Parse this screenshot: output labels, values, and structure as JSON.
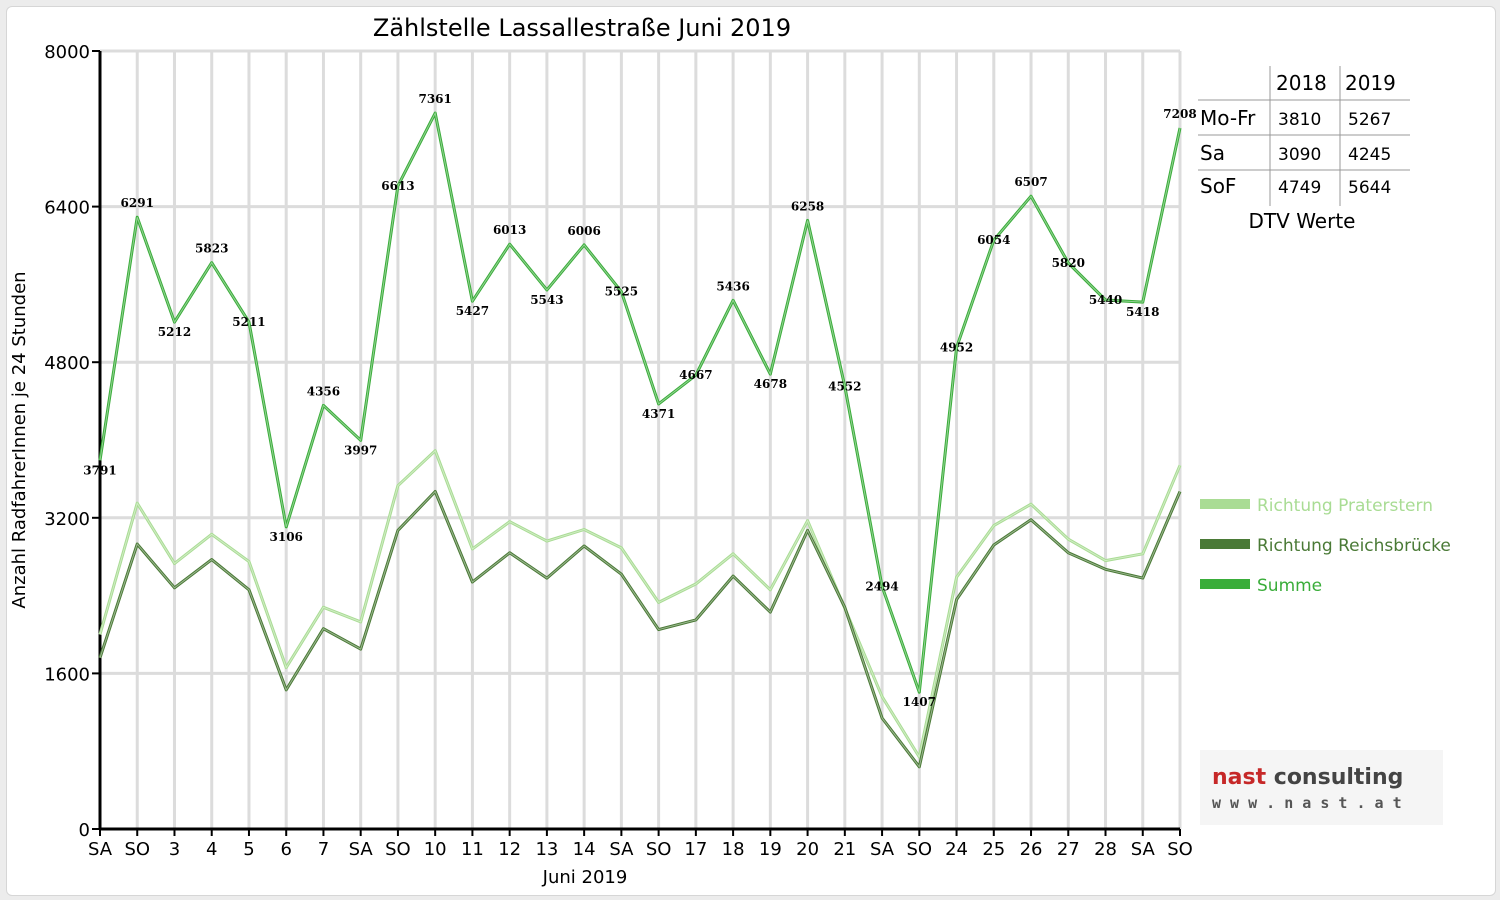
{
  "chart_data": {
    "type": "line",
    "title": "Zählstelle Lassallestraße Juni 2019",
    "xlabel": "Juni 2019",
    "ylabel": "Anzahl RadfahrerInnen je 24 Stunden",
    "ylim": [
      0,
      8000
    ],
    "yticks": [
      "0",
      "1600",
      "3200",
      "4800",
      "6400",
      "8000"
    ],
    "grid": true,
    "legend_position": "right",
    "categories": [
      "SA",
      "SO",
      "3",
      "4",
      "5",
      "6",
      "7",
      "SA",
      "SO",
      "10",
      "11",
      "12",
      "13",
      "14",
      "SA",
      "SO",
      "17",
      "18",
      "19",
      "20",
      "21",
      "SA",
      "SO",
      "24",
      "25",
      "26",
      "27",
      "28",
      "SA",
      "SO"
    ],
    "red_categories": [
      1,
      8,
      9,
      15,
      19,
      22,
      29
    ],
    "series": [
      {
        "name": "Richtung Praterstern",
        "color": "#a9dc94",
        "values": [
          2000,
          3350,
          2730,
          3030,
          2750,
          1660,
          2280,
          2130,
          3530,
          3890,
          2880,
          3160,
          2960,
          3080,
          2890,
          2330,
          2520,
          2830,
          2460,
          3170,
          2270,
          1360,
          740,
          2590,
          3120,
          3340,
          2980,
          2760,
          2830,
          3740
        ]
      },
      {
        "name": "Richtung Reichsbrücke",
        "color": "#4a7a36",
        "values": [
          1760,
          2930,
          2480,
          2770,
          2460,
          1430,
          2060,
          1850,
          3070,
          3470,
          2540,
          2840,
          2580,
          2910,
          2620,
          2050,
          2150,
          2600,
          2230,
          3070,
          2280,
          1140,
          640,
          2360,
          2920,
          3180,
          2840,
          2670,
          2580,
          3470
        ]
      },
      {
        "name": "Summe",
        "color": "#3aad3a",
        "values": [
          3791,
          6291,
          5212,
          5823,
          5211,
          3106,
          4356,
          3997,
          6613,
          7361,
          5427,
          6013,
          5543,
          6006,
          5525,
          4371,
          4667,
          5436,
          4678,
          6258,
          4552,
          2494,
          1407,
          4952,
          6054,
          6507,
          5820,
          5440,
          5418,
          7208
        ],
        "labels": [
          "3791",
          "6291",
          "5212",
          "5823",
          "5211",
          "3106",
          "4356",
          "3997",
          "6613",
          "7361",
          "5427",
          "6013",
          "5543",
          "6006",
          "5525",
          "4371",
          "4667",
          "5436",
          "4678",
          "6258",
          "4552",
          "2494",
          "1407",
          "4952",
          "6054",
          "6507",
          "5820",
          "5440",
          "5418",
          "7208"
        ]
      }
    ]
  },
  "dtv_table": {
    "headers": [
      "",
      "2018",
      "2019"
    ],
    "rows": [
      {
        "label": "Mo-Fr",
        "v2018": "3810",
        "v2019": "5267"
      },
      {
        "label": "Sa",
        "v2018": "3090",
        "v2019": "4245"
      },
      {
        "label": "SoF",
        "v2018": "4749",
        "v2019": "5644"
      }
    ],
    "caption": "DTV Werte"
  },
  "logo": {
    "brand": "nast consulting",
    "url": "w w w . n a s t . a t",
    "brand_color": "#c62828",
    "brand_color_2": "#444444"
  }
}
